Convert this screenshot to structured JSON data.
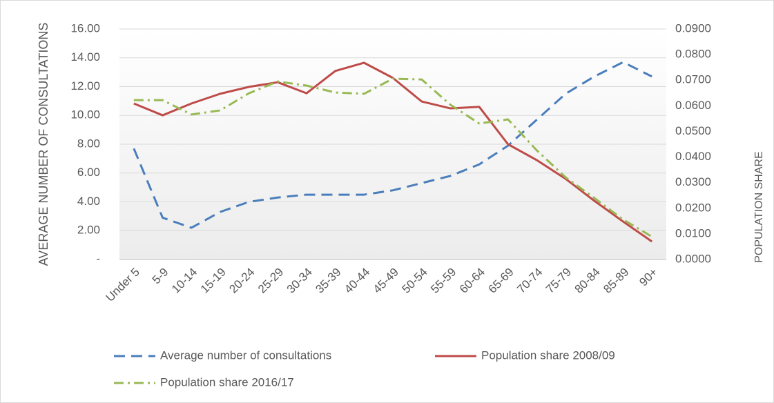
{
  "chart_data": {
    "type": "line",
    "y_label": "AVERAGE NUMBER OF CONSULTATIONS",
    "y2_label": "POPULATION SHARE",
    "categories": [
      "Under 5",
      "5-9",
      "10-14",
      "15-19",
      "20-24",
      "25-29",
      "30-34",
      "35-39",
      "40-44",
      "45-49",
      "50-54",
      "55-59",
      "60-64",
      "65-69",
      "70-74",
      "75-79",
      "80-84",
      "85-89",
      "90+"
    ],
    "ylim": [
      0,
      16
    ],
    "yticks": [
      {
        "value": 0,
        "label": "-"
      },
      {
        "value": 2,
        "label": "2.00"
      },
      {
        "value": 4,
        "label": "4.00"
      },
      {
        "value": 6,
        "label": "6.00"
      },
      {
        "value": 8,
        "label": "8.00"
      },
      {
        "value": 10,
        "label": "10.00"
      },
      {
        "value": 12,
        "label": "12.00"
      },
      {
        "value": 14,
        "label": "14.00"
      },
      {
        "value": 16,
        "label": "16.00"
      }
    ],
    "y2lim": [
      0,
      0.09
    ],
    "y2ticks": [
      {
        "value": 0,
        "label": "0.0000"
      },
      {
        "value": 0.01,
        "label": "0.0100"
      },
      {
        "value": 0.02,
        "label": "0.0200"
      },
      {
        "value": 0.03,
        "label": "0.0300"
      },
      {
        "value": 0.04,
        "label": "0.0400"
      },
      {
        "value": 0.05,
        "label": "0.0500"
      },
      {
        "value": 0.06,
        "label": "0.0600"
      },
      {
        "value": 0.07,
        "label": "0.0700"
      },
      {
        "value": 0.08,
        "label": "0.0800"
      },
      {
        "value": 0.09,
        "label": "0.0900"
      }
    ],
    "grid": true,
    "legend": "bottom",
    "series": [
      {
        "name": "Average number of consultations",
        "color": "#4a7ebb",
        "dash": "dashed",
        "axis": "y",
        "values": [
          7.7,
          2.9,
          2.2,
          3.3,
          4.0,
          4.3,
          4.5,
          4.5,
          4.5,
          4.8,
          5.3,
          5.8,
          6.6,
          7.9,
          9.7,
          11.5,
          12.7,
          13.7,
          12.7
        ]
      },
      {
        "name": "Population share 2008/09",
        "color": "#be4b48",
        "dash": "solid",
        "axis": "y2",
        "values": [
          0.0609,
          0.0563,
          0.0609,
          0.0647,
          0.0674,
          0.0692,
          0.0649,
          0.0736,
          0.0768,
          0.0709,
          0.0617,
          0.059,
          0.0596,
          0.045,
          0.0388,
          0.0315,
          0.0229,
          0.0148,
          0.007
        ]
      },
      {
        "name": "Population share 2016/17",
        "color": "#98b954",
        "dash": "dashdot",
        "axis": "y2",
        "values": [
          0.0622,
          0.0622,
          0.0566,
          0.0582,
          0.0649,
          0.0695,
          0.0679,
          0.0652,
          0.0647,
          0.0706,
          0.0703,
          0.0604,
          0.0531,
          0.0547,
          0.0426,
          0.0321,
          0.024,
          0.0156,
          0.0089
        ]
      }
    ]
  }
}
